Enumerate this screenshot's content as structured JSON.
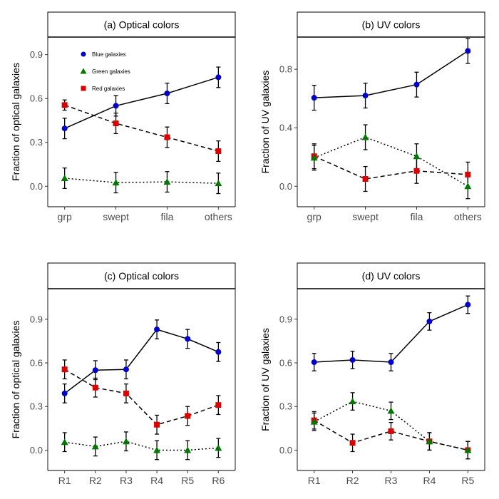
{
  "chart_data": [
    {
      "type": "line",
      "title": "(a) Optical colors",
      "xlabel": "",
      "ylabel": "Fraction of optical galaxies",
      "categories": [
        "grp",
        "swept",
        "fila",
        "others"
      ],
      "yticks": [
        "0.0",
        "0.3",
        "0.6",
        "0.9"
      ],
      "ylim": [
        -0.14,
        1.02
      ],
      "legend": {
        "placement": "top-left",
        "entries": [
          "Blue galaxies",
          "Green galaxies",
          "Red galaxies"
        ]
      },
      "series": [
        {
          "name": "Blue galaxies",
          "color": "#0000cc",
          "marker": "circle",
          "line": "solid",
          "values": [
            0.395,
            0.55,
            0.635,
            0.745
          ],
          "errors": [
            0.07,
            0.07,
            0.07,
            0.07
          ]
        },
        {
          "name": "Red galaxies",
          "color": "#dd0000",
          "marker": "square",
          "line": "dashed",
          "values": [
            0.555,
            0.43,
            0.335,
            0.24
          ],
          "errors": [
            0.035,
            0.07,
            0.07,
            0.07
          ]
        },
        {
          "name": "Green galaxies",
          "color": "#007700",
          "marker": "triangle",
          "line": "dotted",
          "values": [
            0.055,
            0.025,
            0.03,
            0.02
          ],
          "errors": [
            0.07,
            0.07,
            0.07,
            0.07
          ]
        }
      ]
    },
    {
      "type": "line",
      "title": "(b) UV colors",
      "xlabel": "",
      "ylabel": "Fraction of UV galaxies",
      "categories": [
        "grp",
        "swept",
        "fila",
        "others"
      ],
      "yticks": [
        "0.0",
        "0.4",
        "0.8"
      ],
      "ylim": [
        -0.14,
        1.02
      ],
      "series": [
        {
          "name": "Blue galaxies",
          "color": "#0000cc",
          "marker": "circle",
          "line": "solid",
          "values": [
            0.605,
            0.62,
            0.695,
            0.925
          ],
          "errors": [
            0.085,
            0.085,
            0.085,
            0.085
          ]
        },
        {
          "name": "Red galaxies",
          "color": "#dd0000",
          "marker": "square",
          "line": "dashed",
          "values": [
            0.205,
            0.05,
            0.105,
            0.08
          ],
          "errors": [
            0.085,
            0.085,
            0.085,
            0.085
          ]
        },
        {
          "name": "Green galaxies",
          "color": "#007700",
          "marker": "triangle",
          "line": "dotted",
          "values": [
            0.195,
            0.335,
            0.205,
            0.0
          ],
          "errors": [
            0.085,
            0.085,
            0.085,
            0.085
          ]
        }
      ]
    },
    {
      "type": "line",
      "title": "(c) Optical colors",
      "xlabel": "",
      "ylabel": "Fraction of optical galaxies",
      "categories": [
        "R1",
        "R2",
        "R3",
        "R4",
        "R5",
        "R6"
      ],
      "yticks": [
        "0.0",
        "0.3",
        "0.6",
        "0.9"
      ],
      "ylim": [
        -0.14,
        1.11
      ],
      "series": [
        {
          "name": "Blue galaxies",
          "color": "#0000cc",
          "marker": "circle",
          "line": "solid",
          "values": [
            0.39,
            0.55,
            0.555,
            0.83,
            0.765,
            0.675
          ],
          "errors": [
            0.065,
            0.065,
            0.065,
            0.065,
            0.065,
            0.065
          ]
        },
        {
          "name": "Red galaxies",
          "color": "#dd0000",
          "marker": "square",
          "line": "dashed",
          "values": [
            0.555,
            0.43,
            0.39,
            0.175,
            0.235,
            0.31
          ],
          "errors": [
            0.065,
            0.065,
            0.065,
            0.065,
            0.065,
            0.065
          ]
        },
        {
          "name": "Green galaxies",
          "color": "#007700",
          "marker": "triangle",
          "line": "dotted",
          "values": [
            0.055,
            0.025,
            0.06,
            0.0,
            0.0,
            0.015
          ],
          "errors": [
            0.065,
            0.065,
            0.065,
            0.065,
            0.065,
            0.065
          ]
        }
      ]
    },
    {
      "type": "line",
      "title": "(d) UV colors",
      "xlabel": "",
      "ylabel": "Fraction of UV galaxies",
      "categories": [
        "R1",
        "R2",
        "R3",
        "R4",
        "R5"
      ],
      "yticks": [
        "0.0",
        "0.3",
        "0.6",
        "0.9"
      ],
      "ylim": [
        -0.14,
        1.11
      ],
      "series": [
        {
          "name": "Blue galaxies",
          "color": "#0000cc",
          "marker": "circle",
          "line": "solid",
          "values": [
            0.605,
            0.62,
            0.605,
            0.885,
            1.0
          ],
          "errors": [
            0.06,
            0.06,
            0.06,
            0.06,
            0.06
          ]
        },
        {
          "name": "Red galaxies",
          "color": "#dd0000",
          "marker": "square",
          "line": "dashed",
          "values": [
            0.205,
            0.05,
            0.13,
            0.06,
            0.0
          ],
          "errors": [
            0.06,
            0.06,
            0.06,
            0.06,
            0.06
          ]
        },
        {
          "name": "Green galaxies",
          "color": "#007700",
          "marker": "triangle",
          "line": "dotted",
          "values": [
            0.195,
            0.335,
            0.27,
            0.06,
            0.0
          ],
          "errors": [
            0.06,
            0.06,
            0.06,
            0.06,
            0.06
          ]
        }
      ]
    }
  ]
}
